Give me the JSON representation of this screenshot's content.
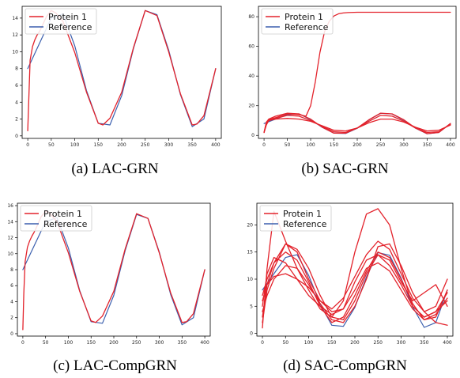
{
  "colors": {
    "protein": "#e3222b",
    "reference": "#3b5fae",
    "axis": "#000000",
    "legend_border": "#cccccc"
  },
  "chart_data": [
    {
      "type": "line",
      "caption": "(a)  LAC-GRN",
      "xticks": [
        "0",
        "50",
        "100",
        "150",
        "200",
        "250",
        "300",
        "350",
        "400"
      ],
      "yticks": [
        "0",
        "2",
        "4",
        "6",
        "8",
        "10",
        "12",
        "14"
      ],
      "xlim": [
        -12,
        412
      ],
      "ylim": [
        -0.3,
        15.4
      ],
      "legend": [
        "Protein 1",
        "Reference"
      ],
      "legend_position": "top-left",
      "series": [
        {
          "name": "Reference",
          "kind": "reference",
          "x": [
            0,
            25,
            50,
            75,
            100,
            125,
            150,
            175,
            200,
            225,
            250,
            275,
            300,
            325,
            350,
            375,
            400
          ],
          "y": [
            8.0,
            11.0,
            14.0,
            14.5,
            10.7,
            5.4,
            1.5,
            1.3,
            4.8,
            10.4,
            14.9,
            14.4,
            10.2,
            4.9,
            1.1,
            2.0,
            8.0
          ]
        },
        {
          "name": "Protein 1",
          "kind": "protein",
          "x": [
            0,
            2,
            5,
            10,
            15,
            20,
            25,
            30,
            40,
            50,
            60,
            75,
            100,
            125,
            150,
            160,
            175,
            200,
            225,
            250,
            275,
            300,
            325,
            350,
            360,
            375,
            400
          ],
          "y": [
            0.6,
            4.0,
            9.0,
            10.6,
            11.4,
            12.0,
            12.4,
            13.0,
            14.2,
            14.9,
            14.6,
            13.6,
            9.9,
            5.2,
            1.5,
            1.3,
            2.1,
            5.2,
            10.5,
            14.9,
            14.3,
            10.0,
            5.0,
            1.3,
            1.4,
            2.4,
            8.0
          ]
        }
      ]
    },
    {
      "type": "line",
      "caption": "(b)  SAC-GRN",
      "xticks": [
        "0",
        "50",
        "100",
        "150",
        "200",
        "250",
        "300",
        "350",
        "400"
      ],
      "yticks": [
        "0",
        "20",
        "40",
        "60",
        "80"
      ],
      "xlim": [
        -12,
        412
      ],
      "ylim": [
        -2,
        87
      ],
      "legend": [
        "Protein 1",
        "Reference"
      ],
      "legend_position": "top-left",
      "series": [
        {
          "name": "Reference",
          "kind": "reference",
          "x": [
            0,
            25,
            50,
            75,
            100,
            125,
            150,
            175,
            200,
            225,
            250,
            275,
            300,
            325,
            350,
            375,
            400
          ],
          "y": [
            8.0,
            11.0,
            14.0,
            14.5,
            10.7,
            5.4,
            1.5,
            1.3,
            4.8,
            10.4,
            14.9,
            14.4,
            10.2,
            4.9,
            1.1,
            2.0,
            8.0
          ]
        },
        {
          "name": "Protein 1",
          "kind": "protein",
          "x": [
            0,
            5,
            10,
            25,
            50,
            75,
            90,
            100,
            110,
            120,
            130,
            140,
            150,
            160,
            170,
            180,
            200,
            250,
            300,
            350,
            400
          ],
          "y": [
            2.0,
            8.0,
            10.5,
            12.0,
            14.5,
            14.0,
            13.0,
            20.0,
            36.0,
            56.0,
            70.0,
            77.0,
            80.5,
            82.0,
            82.5,
            82.8,
            83.0,
            83.0,
            83.0,
            83.0,
            83.0
          ]
        },
        {
          "name": "Protein 1",
          "kind": "protein",
          "x": [
            0,
            5,
            10,
            25,
            50,
            75,
            100,
            125,
            150,
            175,
            200,
            225,
            250,
            275,
            300,
            325,
            350,
            375,
            400
          ],
          "y": [
            2.0,
            7.0,
            10.0,
            11.5,
            13.5,
            13.0,
            10.0,
            6.0,
            2.5,
            2.0,
            5.0,
            9.5,
            13.5,
            13.0,
            9.5,
            5.0,
            2.0,
            2.5,
            7.5
          ]
        },
        {
          "name": "Protein 1",
          "kind": "protein",
          "x": [
            0,
            5,
            10,
            25,
            50,
            75,
            100,
            125,
            150,
            175,
            200,
            225,
            250,
            275,
            300,
            325,
            350,
            375,
            400
          ],
          "y": [
            2.0,
            9.0,
            11.0,
            13.0,
            15.0,
            14.5,
            11.0,
            5.5,
            1.5,
            1.5,
            5.0,
            10.5,
            15.0,
            14.5,
            10.5,
            5.0,
            1.2,
            2.0,
            8.0
          ]
        },
        {
          "name": "Protein 1",
          "kind": "protein",
          "x": [
            0,
            5,
            10,
            25,
            50,
            75,
            100,
            125,
            150,
            175,
            200,
            225,
            250,
            275,
            300,
            325,
            350,
            375,
            400
          ],
          "y": [
            2.0,
            8.5,
            10.0,
            11.0,
            11.5,
            11.0,
            9.5,
            6.5,
            3.5,
            3.0,
            5.0,
            8.5,
            11.0,
            11.0,
            9.0,
            5.5,
            3.0,
            3.5,
            7.0
          ]
        }
      ]
    },
    {
      "type": "line",
      "caption": "(c)  LAC-CompGRN",
      "xticks": [
        "0",
        "50",
        "100",
        "150",
        "200",
        "250",
        "300",
        "350",
        "400"
      ],
      "yticks": [
        "0",
        "2",
        "4",
        "6",
        "8",
        "10",
        "12",
        "14",
        "16"
      ],
      "xlim": [
        -12,
        412
      ],
      "ylim": [
        -0.3,
        16.3
      ],
      "legend": [
        "Protein 1",
        "Reference"
      ],
      "legend_position": "top-left",
      "series": [
        {
          "name": "Reference",
          "kind": "reference",
          "x": [
            0,
            25,
            50,
            75,
            100,
            125,
            150,
            175,
            200,
            225,
            250,
            275,
            300,
            325,
            350,
            375,
            400
          ],
          "y": [
            8.0,
            11.0,
            14.0,
            14.5,
            10.7,
            5.4,
            1.5,
            1.3,
            4.8,
            10.4,
            14.9,
            14.4,
            10.2,
            4.9,
            1.1,
            2.0,
            8.0
          ]
        },
        {
          "name": "Protein 1",
          "kind": "protein",
          "x": [
            0,
            2,
            5,
            10,
            15,
            20,
            25,
            30,
            40,
            50,
            60,
            75,
            100,
            125,
            150,
            160,
            175,
            200,
            225,
            250,
            275,
            300,
            325,
            350,
            360,
            375,
            400
          ],
          "y": [
            0.5,
            5.0,
            9.0,
            10.8,
            11.6,
            12.2,
            12.7,
            13.3,
            14.6,
            15.3,
            15.0,
            14.0,
            10.1,
            5.3,
            1.6,
            1.4,
            2.2,
            5.3,
            10.6,
            15.0,
            14.4,
            10.1,
            5.1,
            1.4,
            1.5,
            2.5,
            8.0
          ]
        }
      ]
    },
    {
      "type": "line",
      "caption": "(d)  SAC-CompGRN",
      "xticks": [
        "0",
        "50",
        "100",
        "150",
        "200",
        "250",
        "300",
        "350",
        "400"
      ],
      "yticks": [
        "0",
        "5",
        "10",
        "15",
        "20"
      ],
      "xlim": [
        -12,
        412
      ],
      "ylim": [
        -0.5,
        24
      ],
      "legend": [
        "Protein 1",
        "Reference"
      ],
      "legend_position": "top-left",
      "series": [
        {
          "name": "Reference",
          "kind": "reference",
          "x": [
            0,
            25,
            50,
            75,
            100,
            125,
            150,
            175,
            200,
            225,
            250,
            275,
            300,
            325,
            350,
            375,
            400
          ],
          "y": [
            8.0,
            11.0,
            14.0,
            14.5,
            10.7,
            5.4,
            1.5,
            1.3,
            4.8,
            10.4,
            14.9,
            14.4,
            10.2,
            4.9,
            1.1,
            2.0,
            8.0
          ]
        },
        {
          "name": "Protein 1",
          "kind": "protein",
          "x": [
            0,
            10,
            25,
            50,
            75,
            100,
            125,
            150,
            175,
            200,
            225,
            250,
            275,
            300,
            325,
            350,
            375,
            400
          ],
          "y": [
            1.0,
            12.0,
            22.5,
            17.0,
            12.0,
            8.0,
            4.5,
            3.0,
            6.0,
            15.0,
            22.0,
            23.0,
            20.0,
            12.0,
            5.0,
            3.0,
            4.0,
            6.0
          ]
        },
        {
          "name": "Protein 1",
          "kind": "protein",
          "x": [
            0,
            10,
            25,
            50,
            75,
            100,
            125,
            150,
            175,
            200,
            225,
            250,
            275,
            300,
            325,
            350,
            375,
            400
          ],
          "y": [
            2.0,
            8.0,
            12.0,
            16.5,
            15.0,
            10.0,
            6.0,
            4.5,
            6.5,
            10.5,
            14.5,
            17.0,
            15.5,
            11.0,
            6.5,
            4.0,
            5.0,
            10.0
          ]
        },
        {
          "name": "Protein 1",
          "kind": "protein",
          "x": [
            0,
            10,
            25,
            50,
            75,
            100,
            125,
            150,
            175,
            200,
            225,
            250,
            275,
            300,
            325,
            350,
            375,
            400
          ],
          "y": [
            3.0,
            9.0,
            13.0,
            15.0,
            13.5,
            9.5,
            5.0,
            2.0,
            3.0,
            7.0,
            11.5,
            15.0,
            14.0,
            10.0,
            5.5,
            2.5,
            3.0,
            8.0
          ]
        },
        {
          "name": "Protein 1",
          "kind": "protein",
          "x": [
            0,
            10,
            25,
            50,
            75,
            100,
            125,
            150,
            175,
            200,
            225,
            250,
            275,
            300,
            325,
            350,
            375,
            400
          ],
          "y": [
            5.0,
            11.0,
            14.0,
            13.0,
            10.0,
            7.0,
            5.0,
            3.5,
            4.5,
            8.0,
            12.0,
            13.0,
            11.5,
            8.0,
            4.5,
            2.5,
            3.5,
            6.5
          ]
        },
        {
          "name": "Protein 1",
          "kind": "protein",
          "x": [
            0,
            10,
            25,
            50,
            75,
            100,
            125,
            150,
            175,
            200,
            225,
            250,
            275,
            300,
            325,
            350,
            375,
            400
          ],
          "y": [
            6.0,
            9.0,
            10.5,
            11.0,
            10.0,
            8.5,
            6.0,
            4.0,
            4.5,
            9.5,
            13.5,
            14.5,
            12.5,
            9.0,
            5.0,
            3.0,
            4.0,
            7.5
          ]
        },
        {
          "name": "Protein 1",
          "kind": "protein",
          "x": [
            0,
            10,
            25,
            50,
            75,
            100,
            125,
            150,
            175,
            200,
            225,
            250,
            275,
            300,
            325,
            350,
            375,
            400
          ],
          "y": [
            4.0,
            7.0,
            10.0,
            12.5,
            12.0,
            9.0,
            5.5,
            2.5,
            2.0,
            5.0,
            10.0,
            16.0,
            16.5,
            12.5,
            7.5,
            4.0,
            2.0,
            1.5
          ]
        },
        {
          "name": "Protein 1",
          "kind": "protein",
          "x": [
            0,
            10,
            25,
            50,
            75,
            100,
            125,
            150,
            175,
            200,
            225,
            250,
            275,
            300,
            325,
            350,
            375,
            400
          ],
          "y": [
            7.0,
            10.0,
            13.0,
            16.5,
            15.5,
            12.0,
            7.0,
            3.0,
            2.5,
            6.0,
            11.0,
            14.5,
            13.5,
            9.5,
            6.0,
            7.5,
            9.0,
            5.0
          ]
        }
      ]
    }
  ]
}
